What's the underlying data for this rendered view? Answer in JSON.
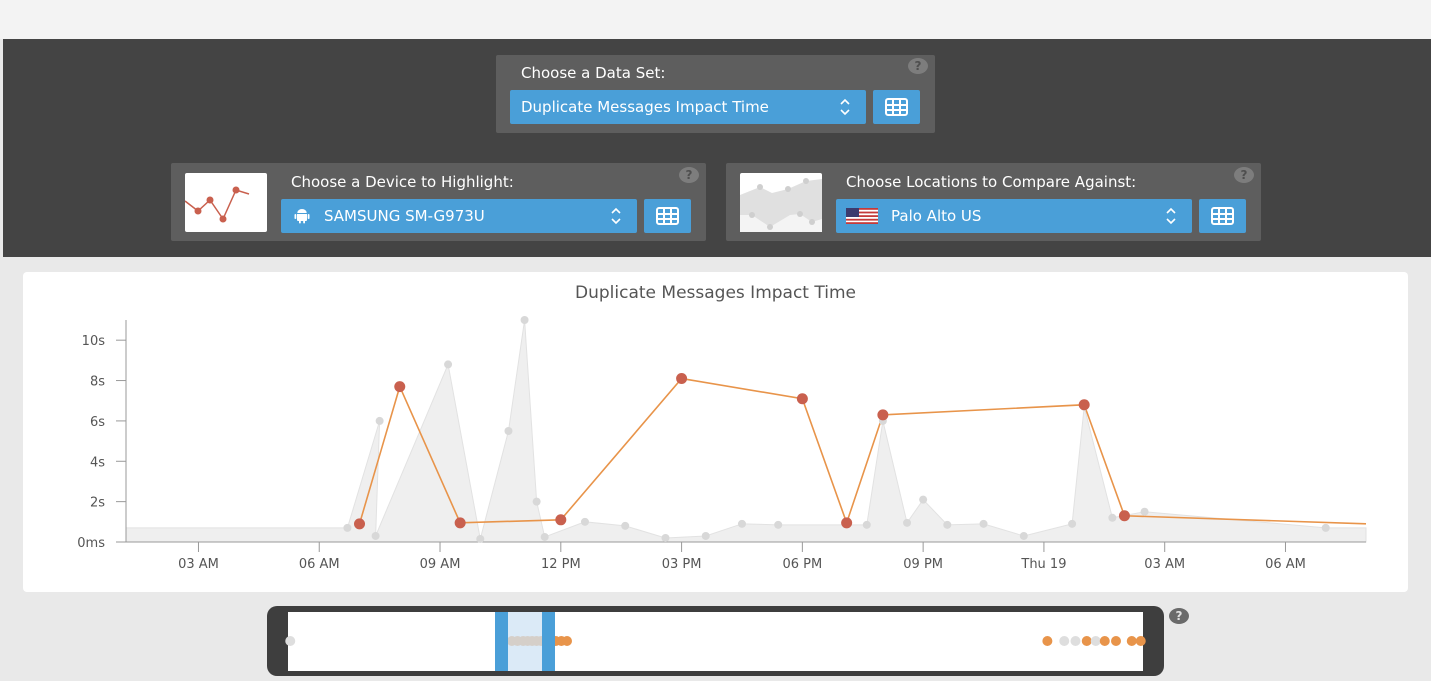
{
  "dataset_panel": {
    "label": "Choose a Data Set:",
    "selected": "Duplicate Messages Impact Time",
    "help": "?"
  },
  "device_panel": {
    "label": "Choose a Device to Highlight:",
    "selected": "SAMSUNG SM-G973U",
    "icon": "android-icon",
    "help": "?"
  },
  "location_panel": {
    "label": "Choose Locations to Compare Against:",
    "selected": "Palo Alto US",
    "icon": "us-flag-icon",
    "help": "?"
  },
  "navigator": {
    "help": "?"
  },
  "colors": {
    "accent": "#4a9fd8",
    "highlight_line": "#e8944a",
    "highlight_point": "#c9604e",
    "comparison_area": "#efefef",
    "comparison_point": "#d8d8d8"
  },
  "chart_data": {
    "type": "area",
    "title": "Duplicate Messages Impact Time",
    "y_unit": "seconds",
    "ylim": [
      0,
      11
    ],
    "y_ticks": [
      {
        "v": 0,
        "label": "0ms"
      },
      {
        "v": 2,
        "label": "2s"
      },
      {
        "v": 4,
        "label": "4s"
      },
      {
        "v": 6,
        "label": "6s"
      },
      {
        "v": 8,
        "label": "8s"
      },
      {
        "v": 10,
        "label": "10s"
      }
    ],
    "x_unit": "hours since midnight (first day)",
    "xlim": [
      1.2,
      32.0
    ],
    "x_ticks": [
      {
        "v": 3,
        "label": "03 AM"
      },
      {
        "v": 6,
        "label": "06 AM"
      },
      {
        "v": 9,
        "label": "09 AM"
      },
      {
        "v": 12,
        "label": "12 PM"
      },
      {
        "v": 15,
        "label": "03 PM"
      },
      {
        "v": 18,
        "label": "06 PM"
      },
      {
        "v": 21,
        "label": "09 PM"
      },
      {
        "v": 24,
        "label": "Thu 19"
      },
      {
        "v": 27,
        "label": "03 AM"
      },
      {
        "v": 30,
        "label": "06 AM"
      }
    ],
    "series": [
      {
        "name": "SAMSUNG SM-G973U",
        "points": [
          [
            7.0,
            0.9
          ],
          [
            8.0,
            7.7
          ],
          [
            9.5,
            0.95
          ],
          [
            12.0,
            1.1
          ],
          [
            15.0,
            8.1
          ],
          [
            18.0,
            7.1
          ],
          [
            19.1,
            0.95
          ],
          [
            20.0,
            6.3
          ],
          [
            25.0,
            6.8
          ],
          [
            26.0,
            1.3
          ],
          [
            32.0,
            0.9
          ]
        ]
      },
      {
        "name": "Palo Alto US",
        "points": [
          [
            1.2,
            0.7
          ],
          [
            6.7,
            0.7
          ],
          [
            7.5,
            6.0
          ],
          [
            7.4,
            0.3
          ],
          [
            9.2,
            8.8
          ],
          [
            10.0,
            0.15
          ],
          [
            10.7,
            5.5
          ],
          [
            11.1,
            11.0
          ],
          [
            11.4,
            2.0
          ],
          [
            11.6,
            0.25
          ],
          [
            12.6,
            1.0
          ],
          [
            13.6,
            0.8
          ],
          [
            14.6,
            0.2
          ],
          [
            15.6,
            0.3
          ],
          [
            16.5,
            0.9
          ],
          [
            17.4,
            0.85
          ],
          [
            19.6,
            0.85
          ],
          [
            20.0,
            6.0
          ],
          [
            20.6,
            0.95
          ],
          [
            21.0,
            2.1
          ],
          [
            21.6,
            0.85
          ],
          [
            22.5,
            0.9
          ],
          [
            23.5,
            0.3
          ],
          [
            24.7,
            0.9
          ],
          [
            25.0,
            6.7
          ],
          [
            25.7,
            1.2
          ],
          [
            26.5,
            1.5
          ],
          [
            31.0,
            0.7
          ],
          [
            32.0,
            0.7
          ]
        ]
      }
    ]
  }
}
